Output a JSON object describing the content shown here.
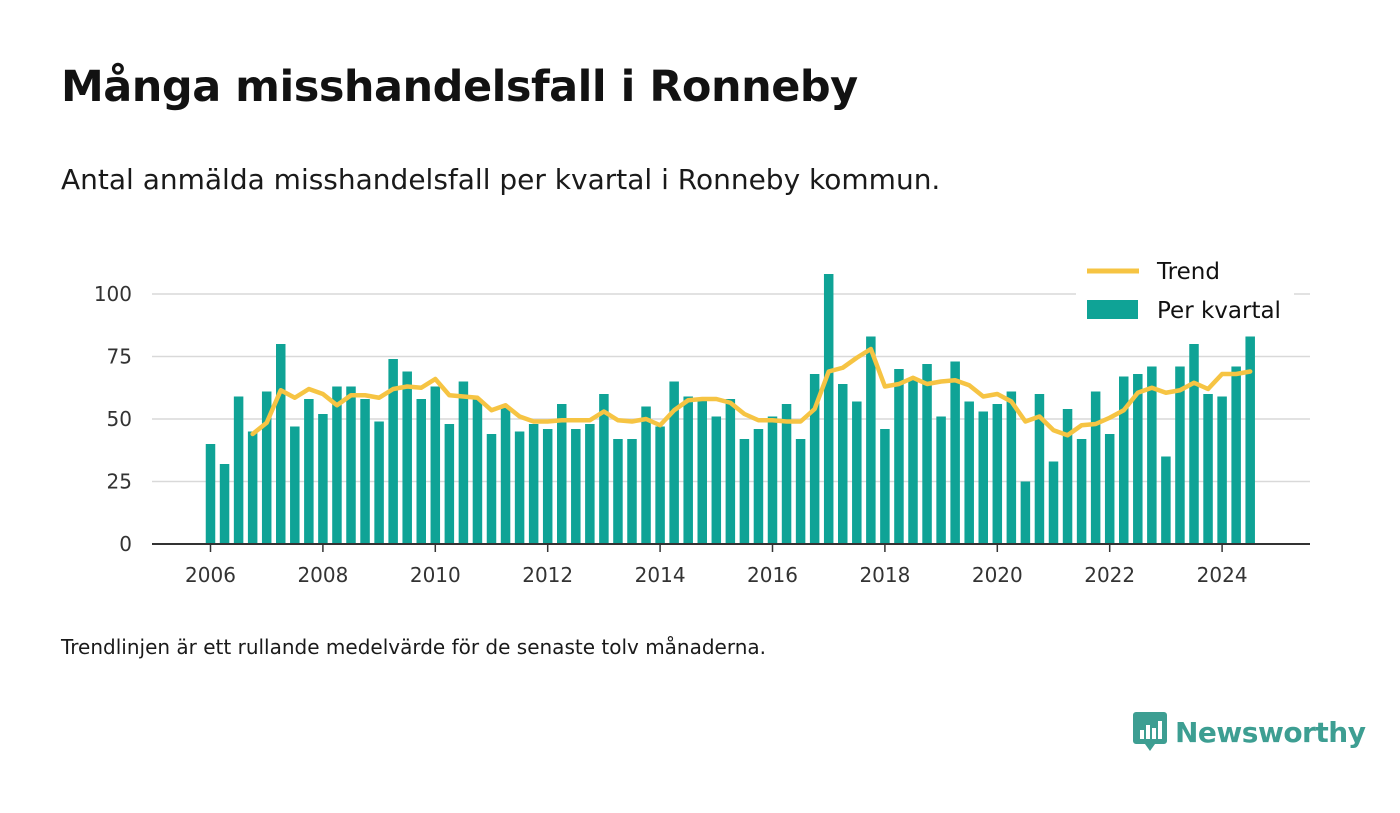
{
  "header": {
    "title": "Många misshandelsfall i Ronneby",
    "subtitle": "Antal anmälda misshandelsfall per kvartal i Ronneby kommun."
  },
  "footer": {
    "note": "Trendlinjen är ett rullande medelvärde för de senaste tolv månaderna.",
    "brand": "Newsworthy"
  },
  "colors": {
    "bar": "#0fa396",
    "trend": "#f6c443",
    "grid": "#d9d9d9",
    "axis": "#333333",
    "brand": "#3d9e92"
  },
  "chart_data": {
    "type": "bar",
    "x_start": 2006.0,
    "x_step": 0.25,
    "ylim": [
      0,
      110
    ],
    "xlim": [
      2005.0,
      2025.6
    ],
    "y_ticks": [
      0,
      25,
      50,
      75,
      100
    ],
    "x_ticks": [
      2006,
      2008,
      2010,
      2012,
      2014,
      2016,
      2018,
      2020,
      2022,
      2024
    ],
    "grid": "horizontal",
    "legend_position": "top-right",
    "series": [
      {
        "name": "Per kvartal",
        "kind": "bar",
        "values": [
          40,
          32,
          59,
          45,
          61,
          80,
          47,
          58,
          52,
          63,
          63,
          58,
          49,
          74,
          69,
          58,
          63,
          48,
          65,
          58,
          44,
          55,
          45,
          48,
          46,
          56,
          46,
          48,
          60,
          42,
          42,
          55,
          47,
          65,
          59,
          58,
          51,
          58,
          42,
          46,
          51,
          56,
          42,
          68,
          108,
          64,
          57,
          83,
          46,
          70,
          66,
          72,
          51,
          73,
          57,
          53,
          56,
          61,
          25,
          60,
          33,
          54,
          42,
          61,
          44,
          67,
          68,
          71,
          35,
          71,
          80,
          60,
          59,
          71,
          83
        ]
      },
      {
        "name": "Trend",
        "kind": "line",
        "start_index": 3,
        "values": [
          44,
          48.5,
          61.5,
          58.5,
          62,
          60,
          55.5,
          59.5,
          59.5,
          58.5,
          62,
          63,
          62.5,
          66,
          59.5,
          59,
          58.5,
          53.5,
          55.5,
          51,
          49,
          49,
          49.5,
          49.5,
          49.5,
          53,
          49.5,
          49,
          50,
          47.5,
          53.5,
          57.5,
          58,
          58,
          56.5,
          52,
          49.5,
          49.5,
          49,
          49,
          54,
          69,
          70.5,
          74.5,
          78,
          63,
          64,
          66.5,
          64,
          65,
          65.5,
          63.5,
          59,
          60,
          57,
          49,
          51,
          45.5,
          43.5,
          47.5,
          48,
          50.5,
          53.5,
          60.5,
          62.5,
          60.5,
          61.5,
          64.5,
          62,
          68,
          68,
          69
        ]
      }
    ]
  }
}
